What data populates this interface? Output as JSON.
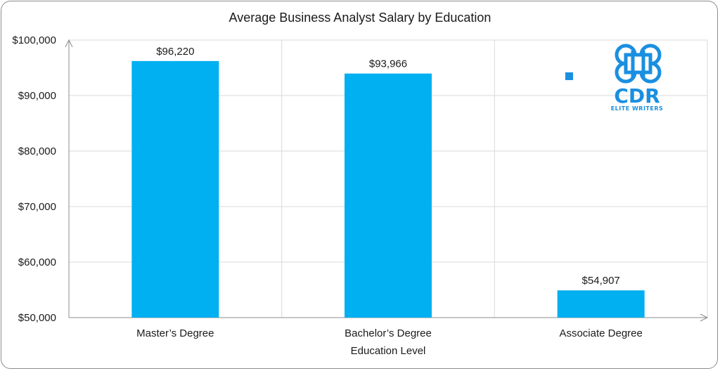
{
  "chart_data": {
    "type": "bar",
    "title": "Average Business Analyst Salary by Education",
    "xlabel": "Education Level",
    "ylabel": "",
    "categories": [
      "Master’s Degree",
      "Bachelor’s Degree",
      "Associate Degree"
    ],
    "values": [
      96220,
      93966,
      54907
    ],
    "data_labels": [
      "$96,220",
      "$93,966",
      "$54,907"
    ],
    "ylim": [
      50000,
      100000
    ],
    "yticks": [
      50000,
      60000,
      70000,
      80000,
      90000,
      100000
    ],
    "ytick_labels": [
      "$50,000",
      "$60,000",
      "$70,000",
      "$80,000",
      "$90,000",
      "$100,000"
    ],
    "grid": true,
    "legend": "none",
    "bar_color": "#00b0f0"
  },
  "logo": {
    "text": "CDR",
    "subtext": "ELITE WRITERS",
    "color": "#1a8fe0"
  }
}
